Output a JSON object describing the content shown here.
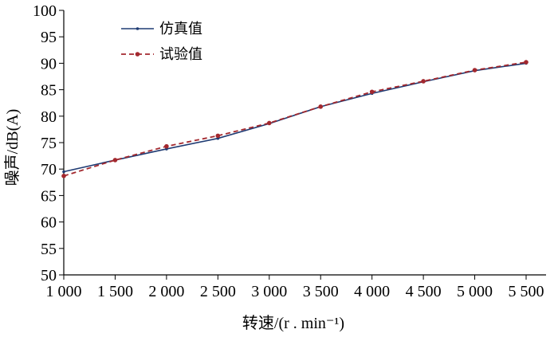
{
  "chart_data": {
    "type": "line",
    "xlabel": "转速/(r . min⁻¹)",
    "ylabel": "噪声/dB(A)",
    "x_ticks": [
      1000,
      1500,
      2000,
      2500,
      3000,
      3500,
      4000,
      4500,
      5000,
      5500
    ],
    "x_tick_labels": [
      "1 000",
      "1 500",
      "2 000",
      "2 500",
      "3 000",
      "3 500",
      "4 000",
      "4 500",
      "5 000",
      "5 500"
    ],
    "y_ticks": [
      50,
      55,
      60,
      65,
      70,
      75,
      80,
      85,
      90,
      95,
      100
    ],
    "y_tick_labels": [
      "50",
      "55",
      "60",
      "65",
      "70",
      "75",
      "80",
      "85",
      "90",
      "95",
      "100"
    ],
    "xlim": [
      1000,
      5500
    ],
    "ylim": [
      50,
      100
    ],
    "grid": false,
    "legend_position": "top-left",
    "series": [
      {
        "name": "仿真值",
        "color": "#1f3b73",
        "line_style": "solid",
        "marker": "small-dot",
        "x": [
          1000,
          1500,
          2000,
          2500,
          3000,
          3500,
          4000,
          4500,
          5000,
          5500
        ],
        "y": [
          69.5,
          71.7,
          73.8,
          75.8,
          78.6,
          81.8,
          84.3,
          86.5,
          88.6,
          90.0
        ]
      },
      {
        "name": "试验值",
        "color": "#a3282e",
        "line_style": "dashed",
        "marker": "dot",
        "x": [
          1000,
          1500,
          2000,
          2500,
          3000,
          3500,
          4000,
          4500,
          5000,
          5500
        ],
        "y": [
          68.7,
          71.7,
          74.3,
          76.3,
          78.7,
          81.8,
          84.6,
          86.6,
          88.7,
          90.2
        ]
      }
    ]
  }
}
